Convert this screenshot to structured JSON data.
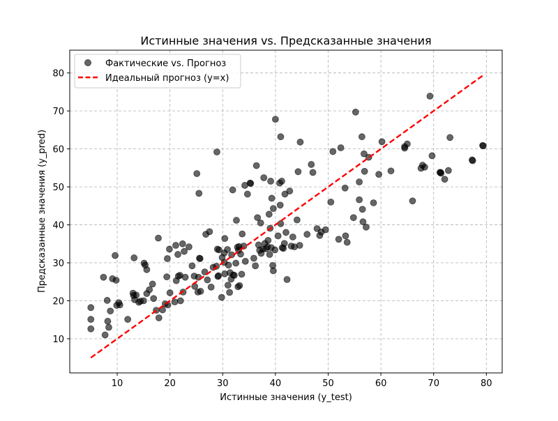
{
  "chart_data": {
    "type": "scatter",
    "title": "Истинные значения vs. Предсказанные значения",
    "xlabel": "Истинные значения (y_test)",
    "ylabel": "Предсказанные значения (y_pred)",
    "xlim": [
      1,
      83
    ],
    "ylim": [
      1,
      86
    ],
    "xticks": [
      10,
      20,
      30,
      40,
      50,
      60,
      70,
      80
    ],
    "yticks": [
      10,
      20,
      30,
      40,
      50,
      60,
      70,
      80
    ],
    "grid": true,
    "legend_position": "top-left",
    "legend": [
      {
        "label": "Фактические vs. Прогноз",
        "kind": "marker",
        "color": "#000000"
      },
      {
        "label": "Идеальный прогноз (y=x)",
        "kind": "dashed-line",
        "color": "#ff0000"
      }
    ],
    "series": [
      {
        "name": "Фактические vs. Прогноз",
        "kind": "scatter",
        "color": "#000000",
        "opacity": 0.6,
        "points": [
          [
            5.0,
            18.2
          ],
          [
            5.0,
            15.1
          ],
          [
            5.0,
            12.6
          ],
          [
            7.4,
            26.2
          ],
          [
            7.7,
            11.0
          ],
          [
            8.1,
            20.1
          ],
          [
            8.2,
            14.6
          ],
          [
            8.4,
            13.0
          ],
          [
            8.7,
            17.3
          ],
          [
            9.1,
            25.8
          ],
          [
            9.6,
            31.9
          ],
          [
            9.8,
            25.4
          ],
          [
            9.9,
            18.8
          ],
          [
            10.3,
            19.5
          ],
          [
            10.5,
            18.9
          ],
          [
            12.0,
            15.1
          ],
          [
            13.0,
            22.0
          ],
          [
            13.1,
            21.4
          ],
          [
            13.2,
            31.3
          ],
          [
            13.3,
            20.3
          ],
          [
            13.6,
            21.5
          ],
          [
            14.1,
            19.6
          ],
          [
            14.4,
            19.9
          ],
          [
            15.0,
            20.0
          ],
          [
            15.1,
            29.9
          ],
          [
            15.3,
            29.4
          ],
          [
            15.6,
            28.2
          ],
          [
            15.6,
            21.9
          ],
          [
            16.1,
            22.9
          ],
          [
            16.7,
            24.4
          ],
          [
            16.9,
            20.6
          ],
          [
            17.4,
            17.5
          ],
          [
            17.8,
            36.5
          ],
          [
            17.9,
            15.5
          ],
          [
            18.6,
            17.6
          ],
          [
            19.1,
            19.2
          ],
          [
            19.4,
            26.3
          ],
          [
            19.5,
            31.1
          ],
          [
            19.6,
            18.9
          ],
          [
            19.9,
            33.6
          ],
          [
            20.0,
            22.1
          ],
          [
            20.9,
            19.7
          ],
          [
            21.1,
            34.6
          ],
          [
            21.2,
            25.3
          ],
          [
            21.5,
            32.2
          ],
          [
            21.6,
            26.5
          ],
          [
            22.0,
            20.0
          ],
          [
            22.4,
            35.0
          ],
          [
            22.5,
            22.3
          ],
          [
            22.7,
            33.0
          ],
          [
            22.9,
            26.2
          ],
          [
            23.6,
            34.2
          ],
          [
            24.2,
            29.2
          ],
          [
            24.6,
            26.5
          ],
          [
            24.7,
            23.8
          ],
          [
            25.1,
            53.5
          ],
          [
            25.3,
            22.3
          ],
          [
            25.4,
            26.2
          ],
          [
            25.5,
            48.3
          ],
          [
            25.6,
            31.2
          ],
          [
            25.8,
            22.5
          ],
          [
            26.6,
            27.6
          ],
          [
            26.8,
            37.5
          ],
          [
            27.1,
            25.5
          ],
          [
            27.5,
            38.2
          ],
          [
            27.8,
            23.6
          ],
          [
            28.2,
            28.8
          ],
          [
            28.8,
            29.1
          ],
          [
            28.9,
            59.2
          ],
          [
            29.0,
            33.6
          ],
          [
            29.1,
            26.4
          ],
          [
            29.3,
            33.4
          ],
          [
            29.8,
            20.9
          ],
          [
            29.9,
            31.4
          ],
          [
            30.3,
            30.1
          ],
          [
            30.3,
            32.6
          ],
          [
            30.4,
            36.4
          ],
          [
            30.4,
            27.1
          ],
          [
            30.9,
            33.5
          ],
          [
            31.0,
            24.1
          ],
          [
            31.1,
            29.4
          ],
          [
            31.3,
            22.2
          ],
          [
            31.4,
            27.4
          ],
          [
            31.6,
            25.7
          ],
          [
            31.7,
            32.1
          ],
          [
            31.9,
            49.2
          ],
          [
            32.0,
            26.8
          ],
          [
            32.2,
            26.7
          ],
          [
            32.5,
            29.9
          ],
          [
            32.6,
            41.2
          ],
          [
            32.8,
            34.1
          ],
          [
            32.9,
            23.7
          ],
          [
            33.0,
            33.3
          ],
          [
            33.1,
            34.3
          ],
          [
            33.2,
            24.0
          ],
          [
            33.4,
            32.3
          ],
          [
            33.6,
            27.0
          ],
          [
            33.7,
            37.6
          ],
          [
            34.0,
            34.4
          ],
          [
            34.2,
            50.4
          ],
          [
            34.3,
            30.4
          ],
          [
            34.7,
            48.1
          ],
          [
            35.2,
            51.0
          ],
          [
            35.9,
            31.2
          ],
          [
            36.2,
            29.2
          ],
          [
            36.4,
            55.6
          ],
          [
            36.6,
            41.9
          ],
          [
            36.8,
            34.7
          ],
          [
            37.0,
            33.3
          ],
          [
            37.2,
            40.5
          ],
          [
            37.3,
            32.5
          ],
          [
            37.6,
            33.6
          ],
          [
            37.8,
            52.4
          ],
          [
            38.0,
            35.1
          ],
          [
            38.2,
            33.7
          ],
          [
            38.5,
            34.2
          ],
          [
            38.6,
            35.9
          ],
          [
            38.8,
            42.8
          ],
          [
            38.9,
            32.2
          ],
          [
            39.0,
            39.1
          ],
          [
            39.1,
            51.5
          ],
          [
            39.2,
            34.0
          ],
          [
            39.3,
            47.0
          ],
          [
            39.5,
            29.3
          ],
          [
            39.6,
            27.9
          ],
          [
            39.6,
            44.3
          ],
          [
            39.9,
            33.4
          ],
          [
            40.0,
            67.8
          ],
          [
            40.5,
            37.1
          ],
          [
            40.8,
            51.0
          ],
          [
            40.9,
            45.2
          ],
          [
            41.0,
            40.3
          ],
          [
            41.0,
            63.2
          ],
          [
            41.2,
            51.5
          ],
          [
            41.3,
            34.0
          ],
          [
            41.5,
            33.8
          ],
          [
            41.7,
            35.1
          ],
          [
            41.8,
            48.1
          ],
          [
            42.0,
            38.0
          ],
          [
            42.2,
            25.6
          ],
          [
            42.7,
            48.9
          ],
          [
            43.0,
            34.4
          ],
          [
            43.3,
            36.8
          ],
          [
            43.6,
            34.2
          ],
          [
            44.1,
            41.3
          ],
          [
            44.3,
            54.0
          ],
          [
            44.6,
            34.6
          ],
          [
            44.7,
            61.8
          ],
          [
            46.0,
            37.5
          ],
          [
            46.8,
            55.9
          ],
          [
            47.1,
            53.8
          ],
          [
            47.9,
            39.0
          ],
          [
            48.4,
            37.2
          ],
          [
            48.7,
            38.1
          ],
          [
            49.5,
            38.7
          ],
          [
            50.5,
            46.0
          ],
          [
            50.9,
            59.3
          ],
          [
            52.0,
            36.2
          ],
          [
            52.4,
            60.3
          ],
          [
            53.2,
            49.7
          ],
          [
            53.3,
            37.1
          ],
          [
            53.6,
            35.4
          ],
          [
            54.8,
            41.9
          ],
          [
            55.2,
            69.7
          ],
          [
            55.9,
            46.6
          ],
          [
            55.9,
            51.3
          ],
          [
            56.4,
            63.2
          ],
          [
            56.5,
            44.1
          ],
          [
            56.6,
            40.8
          ],
          [
            56.8,
            58.7
          ],
          [
            56.9,
            54.1
          ],
          [
            57.2,
            39.4
          ],
          [
            57.7,
            57.8
          ],
          [
            58.6,
            45.8
          ],
          [
            59.6,
            53.3
          ],
          [
            60.2,
            61.9
          ],
          [
            61.9,
            54.2
          ],
          [
            64.5,
            60.2
          ],
          [
            64.5,
            60.6
          ],
          [
            65.0,
            61.3
          ],
          [
            66.0,
            46.3
          ],
          [
            67.6,
            54.9
          ],
          [
            67.9,
            55.7
          ],
          [
            68.3,
            55.2
          ],
          [
            69.3,
            73.9
          ],
          [
            69.7,
            58.2
          ],
          [
            71.2,
            53.8
          ],
          [
            71.3,
            53.8
          ],
          [
            71.4,
            53.6
          ],
          [
            72.1,
            52.0
          ],
          [
            72.8,
            54.3
          ],
          [
            73.1,
            63.0
          ],
          [
            77.3,
            57.1
          ],
          [
            77.4,
            56.9
          ],
          [
            79.3,
            60.9
          ],
          [
            79.4,
            60.8
          ],
          [
            35.3,
            50.9
          ],
          [
            29.2,
            26.6
          ],
          [
            25.7,
            31.1
          ],
          [
            21.9,
            26.7
          ]
        ]
      },
      {
        "name": "Идеальный прогноз (y=x)",
        "kind": "line",
        "style": "dashed",
        "color": "#ff0000",
        "x": [
          5.0,
          79.4
        ],
        "y": [
          5.0,
          79.4
        ]
      }
    ]
  }
}
